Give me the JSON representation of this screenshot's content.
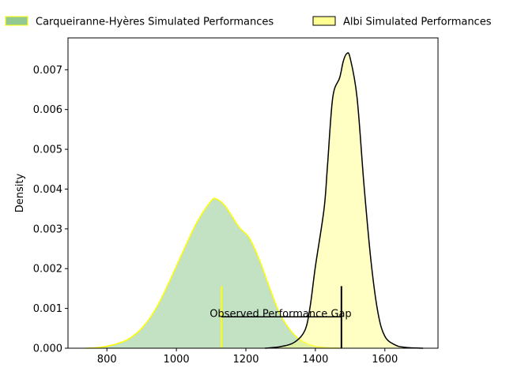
{
  "chart_data": {
    "type": "area",
    "title": "",
    "xlabel": "",
    "ylabel": "Density",
    "xlim": [
      688,
      1753
    ],
    "ylim": [
      0,
      0.0078
    ],
    "x_ticks": [
      {
        "value": 800,
        "label": "800"
      },
      {
        "value": 1000,
        "label": "1000"
      },
      {
        "value": 1200,
        "label": "1200"
      },
      {
        "value": 1400,
        "label": "1400"
      },
      {
        "value": 1600,
        "label": "1600"
      }
    ],
    "y_ticks": [
      {
        "value": 0,
        "label": "0.000"
      },
      {
        "value": 0.001,
        "label": "0.001"
      },
      {
        "value": 0.002,
        "label": "0.002"
      },
      {
        "value": 0.003,
        "label": "0.003"
      },
      {
        "value": 0.004,
        "label": "0.004"
      },
      {
        "value": 0.005,
        "label": "0.005"
      },
      {
        "value": 0.006,
        "label": "0.006"
      },
      {
        "value": 0.007,
        "label": "0.007"
      }
    ],
    "legend_position": "top",
    "series": [
      {
        "name": "Carqueiranne-Hyères Simulated Performances",
        "fill": "#7fbf7f",
        "edge": "#ffff00",
        "points": [
          [
            740,
            0
          ],
          [
            780,
            2e-05
          ],
          [
            820,
            9e-05
          ],
          [
            860,
            0.00022
          ],
          [
            900,
            0.0005
          ],
          [
            940,
            0.00098
          ],
          [
            980,
            0.00168
          ],
          [
            1020,
            0.00245
          ],
          [
            1060,
            0.00318
          ],
          [
            1100,
            0.0037
          ],
          [
            1115,
            0.00375
          ],
          [
            1140,
            0.00358
          ],
          [
            1180,
            0.00305
          ],
          [
            1210,
            0.00277
          ],
          [
            1240,
            0.0022
          ],
          [
            1270,
            0.00148
          ],
          [
            1300,
            0.00083
          ],
          [
            1340,
            0.00033
          ],
          [
            1380,
            0.0001
          ],
          [
            1420,
            2e-05
          ],
          [
            1470,
            0
          ]
        ]
      },
      {
        "name": "Albi Simulated Performances",
        "fill": "#ffff80",
        "edge": "#000000",
        "points": [
          [
            1255,
            0
          ],
          [
            1300,
            4e-05
          ],
          [
            1340,
            0.00015
          ],
          [
            1370,
            0.00045
          ],
          [
            1385,
            0.00105
          ],
          [
            1400,
            0.00205
          ],
          [
            1425,
            0.0035
          ],
          [
            1435,
            0.0046
          ],
          [
            1450,
            0.0063
          ],
          [
            1470,
            0.0068
          ],
          [
            1480,
            0.0072
          ],
          [
            1490,
            0.0074
          ],
          [
            1500,
            0.0073
          ],
          [
            1520,
            0.0063
          ],
          [
            1540,
            0.0041
          ],
          [
            1560,
            0.0022
          ],
          [
            1580,
            0.0009
          ],
          [
            1600,
            0.0003
          ],
          [
            1630,
            8e-05
          ],
          [
            1660,
            2e-05
          ],
          [
            1710,
            0
          ]
        ]
      }
    ],
    "annotation": {
      "text": "Observed Performance Gap",
      "x_text": 1300,
      "y_text": 0.00088,
      "line_y": 0.00079,
      "x_start": 1130,
      "x_end": 1475,
      "marker_ymax": 0.00156
    }
  }
}
